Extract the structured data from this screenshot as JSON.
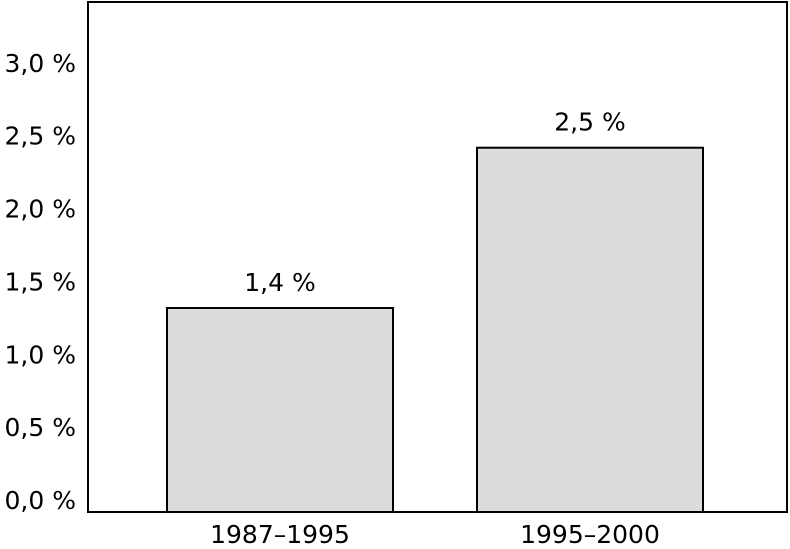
{
  "chart_data": {
    "type": "bar",
    "categories": [
      "1987–1995",
      "1995–2000"
    ],
    "values": [
      1.4,
      2.5
    ],
    "value_labels": [
      "1,4 %",
      "2,5 %"
    ],
    "color": "#dcdcdc",
    "ylim": [
      0,
      3.5
    ],
    "yticks": [
      {
        "value": 0,
        "label": "0,0 %"
      },
      {
        "value": 0.5,
        "label": "0,5 %"
      },
      {
        "value": 1,
        "label": "1,0 %"
      },
      {
        "value": 1.5,
        "label": "1,5 %"
      },
      {
        "value": 2,
        "label": "2,0 %"
      },
      {
        "value": 2.5,
        "label": "2,5 %"
      },
      {
        "value": 3,
        "label": "3,0 %"
      }
    ],
    "grid": false
  }
}
